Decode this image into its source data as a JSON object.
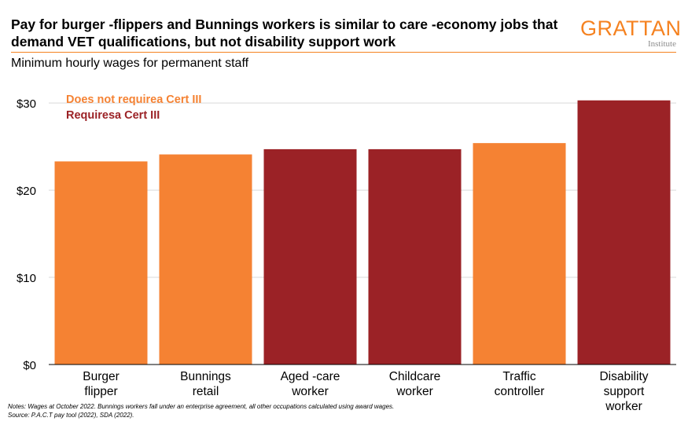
{
  "header": {
    "title": "Pay for burger -flippers and Bunnings workers is similar to care  -economy jobs that demand VET qualifications, but not disability support work",
    "subtitle": "Minimum hourly wages for permanent staff"
  },
  "logo": {
    "wordmark": "GRATTAN",
    "subtext": "Institute"
  },
  "notes": {
    "line1": "Notes: Wages   at October 2022. Bunnings workers fall under an enterprise agreement, all other occupations calculated using award wages.",
    "line2": "Source: P.A.C.T pay tool (2022), SDA (2022)."
  },
  "colors": {
    "no_cert": "#f58233",
    "cert": "#9b2226",
    "brand": "#f58220",
    "grid": "#d9d9d9"
  },
  "chart_data": {
    "type": "bar",
    "categories": [
      [
        "Burger",
        "flipper"
      ],
      [
        "Bunnings",
        "retail"
      ],
      [
        "Aged -care",
        "worker"
      ],
      [
        "Childcare",
        "worker"
      ],
      [
        "Traffic",
        "controller"
      ],
      [
        "Disability",
        "support",
        "worker"
      ]
    ],
    "values": [
      23.3,
      24.1,
      24.7,
      24.7,
      25.4,
      30.3
    ],
    "groups": [
      "no_cert",
      "no_cert",
      "cert",
      "cert",
      "no_cert",
      "cert"
    ],
    "legend": [
      {
        "label": "Does not requirea Cert III",
        "key": "no_cert"
      },
      {
        "label": "Requiresa Cert III",
        "key": "cert"
      }
    ],
    "yticks": [
      "$0",
      "$10",
      "$20",
      "$30"
    ],
    "ylim": [
      0,
      31
    ],
    "grid": true,
    "legend_position": "top-left"
  }
}
